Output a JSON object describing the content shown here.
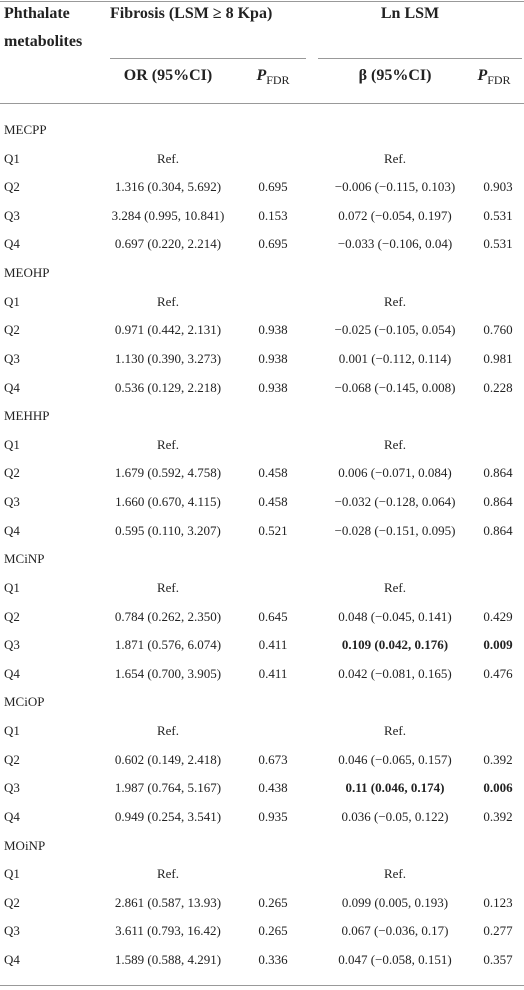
{
  "header": {
    "metabolite": [
      "Phthalate",
      "metabolites"
    ],
    "fibrosis": "Fibrosis (LSM ≥ 8 Kpa)",
    "lnlsm": "Ln LSM",
    "or": "OR (95%CI)",
    "or_p": {
      "symbol": "P",
      "subscript": "FDR"
    },
    "beta": "β (95%CI)",
    "beta_p": {
      "symbol": "P",
      "subscript": "FDR"
    }
  },
  "groups": [
    {
      "name": "MECPP",
      "rows": [
        {
          "label": "Q1",
          "or": "Ref.",
          "beta": "Ref."
        },
        {
          "label": "Q2",
          "or": "1.316 (0.304, 5.692)",
          "or_p": "0.695",
          "beta": "−0.006 (−0.115, 0.103)",
          "beta_p": "0.903"
        },
        {
          "label": "Q3",
          "or": "3.284 (0.995, 10.841)",
          "or_p": "0.153",
          "beta": "0.072 (−0.054, 0.197)",
          "beta_p": "0.531"
        },
        {
          "label": "Q4",
          "or": "0.697 (0.220, 2.214)",
          "or_p": "0.695",
          "beta": "−0.033 (−0.106, 0.04)",
          "beta_p": "0.531"
        }
      ]
    },
    {
      "name": "MEOHP",
      "rows": [
        {
          "label": "Q1",
          "or": "Ref.",
          "beta": "Ref."
        },
        {
          "label": "Q2",
          "or": "0.971 (0.442, 2.131)",
          "or_p": "0.938",
          "beta": "−0.025 (−0.105, 0.054)",
          "beta_p": "0.760"
        },
        {
          "label": "Q3",
          "or": "1.130 (0.390, 3.273)",
          "or_p": "0.938",
          "beta": "0.001 (−0.112, 0.114)",
          "beta_p": "0.981"
        },
        {
          "label": "Q4",
          "or": "0.536 (0.129, 2.218)",
          "or_p": "0.938",
          "beta": "−0.068 (−0.145, 0.008)",
          "beta_p": "0.228"
        }
      ]
    },
    {
      "name": "MEHHP",
      "rows": [
        {
          "label": "Q1",
          "or": "Ref.",
          "beta": "Ref."
        },
        {
          "label": "Q2",
          "or": "1.679 (0.592, 4.758)",
          "or_p": "0.458",
          "beta": "0.006 (−0.071, 0.084)",
          "beta_p": "0.864"
        },
        {
          "label": "Q3",
          "or": "1.660 (0.670, 4.115)",
          "or_p": "0.458",
          "beta": "−0.032 (−0.128, 0.064)",
          "beta_p": "0.864"
        },
        {
          "label": "Q4",
          "or": "0.595 (0.110, 3.207)",
          "or_p": "0.521",
          "beta": "−0.028 (−0.151, 0.095)",
          "beta_p": "0.864"
        }
      ]
    },
    {
      "name": "MCiNP",
      "rows": [
        {
          "label": "Q1",
          "or": "Ref.",
          "beta": "Ref."
        },
        {
          "label": "Q2",
          "or": "0.784 (0.262, 2.350)",
          "or_p": "0.645",
          "beta": "0.048 (−0.045, 0.141)",
          "beta_p": "0.429"
        },
        {
          "label": "Q3",
          "or": "1.871 (0.576, 6.074)",
          "or_p": "0.411",
          "beta": "0.109 (0.042, 0.176)",
          "beta_p": "0.009",
          "beta_bold": true
        },
        {
          "label": "Q4",
          "or": "1.654 (0.700, 3.905)",
          "or_p": "0.411",
          "beta": "0.042 (−0.081, 0.165)",
          "beta_p": "0.476"
        }
      ]
    },
    {
      "name": "MCiOP",
      "rows": [
        {
          "label": "Q1",
          "or": "Ref.",
          "beta": "Ref."
        },
        {
          "label": "Q2",
          "or": "0.602 (0.149, 2.418)",
          "or_p": "0.673",
          "beta": "0.046 (−0.065, 0.157)",
          "beta_p": "0.392"
        },
        {
          "label": "Q3",
          "or": "1.987 (0.764, 5.167)",
          "or_p": "0.438",
          "beta": "0.11 (0.046, 0.174)",
          "beta_p": "0.006",
          "beta_bold": true
        },
        {
          "label": "Q4",
          "or": "0.949 (0.254, 3.541)",
          "or_p": "0.935",
          "beta": "0.036 (−0.05, 0.122)",
          "beta_p": "0.392"
        }
      ]
    },
    {
      "name": "MOiNP",
      "rows": [
        {
          "label": "Q1",
          "or": "Ref.",
          "beta": "Ref."
        },
        {
          "label": "Q2",
          "or": "2.861 (0.587, 13.93)",
          "or_p": "0.265",
          "beta": "0.099 (0.005, 0.193)",
          "beta_p": "0.123"
        },
        {
          "label": "Q3",
          "or": "3.611 (0.793, 16.42)",
          "or_p": "0.265",
          "beta": "0.067 (−0.036, 0.17)",
          "beta_p": "0.277"
        },
        {
          "label": "Q4",
          "or": "1.589 (0.588, 4.291)",
          "or_p": "0.336",
          "beta": "0.047 (−0.058, 0.151)",
          "beta_p": "0.357"
        }
      ]
    }
  ]
}
